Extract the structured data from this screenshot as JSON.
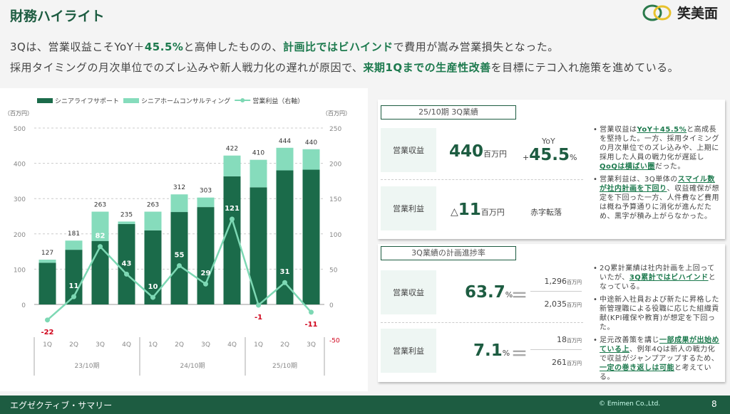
{
  "header": {
    "title": "財務ハイライト",
    "logo_text": "笑美面"
  },
  "headline": {
    "line1": [
      {
        "t": "3Qは、営業収益こそYoY＋",
        "e": false
      },
      {
        "t": "45.5%",
        "e": true
      },
      {
        "t": "と高伸したものの、",
        "e": false
      },
      {
        "t": "計画比ではビハインド",
        "e": true
      },
      {
        "t": "で費用が嵩み営業損失となった。",
        "e": false
      }
    ],
    "line2": [
      {
        "t": "採用タイミングの月次単位でのズレ込みや新人戦力化の遅れが原因で、",
        "e": false
      },
      {
        "t": "来期1Qまでの生産性改善",
        "e": true
      },
      {
        "t": "を目標にテコ入れ施策を進めている。",
        "e": false
      }
    ]
  },
  "chart_data": {
    "type": "bar",
    "legend": [
      "シニアライフサポート",
      "シニアホームコンサルティング",
      "営業利益（右軸）"
    ],
    "y_unit_left": "（百万円）",
    "y_unit_right": "（百万円）",
    "categories": [
      "1Q",
      "2Q",
      "3Q",
      "4Q",
      "1Q",
      "2Q",
      "3Q",
      "4Q",
      "1Q",
      "2Q",
      "3Q"
    ],
    "groups": [
      {
        "label": "23/10期",
        "count": 4
      },
      {
        "label": "24/10期",
        "count": 4
      },
      {
        "label": "25/10期",
        "count": 3
      }
    ],
    "series": [
      {
        "name": "シニアライフサポート",
        "values": [
          118,
          155,
          180,
          228,
          210,
          262,
          276,
          363,
          332,
          380,
          382
        ]
      },
      {
        "name": "シニアホームコンサルティング",
        "values": [
          9,
          26,
          83,
          7,
          53,
          50,
          27,
          59,
          78,
          64,
          58
        ]
      }
    ],
    "totals": [
      127,
      181,
      263,
      235,
      263,
      312,
      303,
      422,
      410,
      444,
      440
    ],
    "operating_profit": [
      -22,
      11,
      82,
      43,
      10,
      55,
      29,
      121,
      -1,
      31,
      -11
    ],
    "ylim_left": [
      0,
      500
    ],
    "yticks_left": [
      0,
      100,
      200,
      300,
      400,
      500
    ],
    "ylim_right": [
      -50,
      250
    ],
    "yticks_right": [
      -50,
      0,
      50,
      100,
      150,
      200,
      250
    ],
    "colors": {
      "dark": "#1b6b4a",
      "light": "#86dcbc",
      "line": "#7dd8b4",
      "neg": "#d0021b"
    }
  },
  "results": {
    "section_label": "25/10期 3Q業績",
    "revenue_label": "営業収益",
    "revenue_value": "440",
    "revenue_unit": "百万円",
    "yoy_label": "YoY",
    "yoy_sign": "+",
    "yoy_value": "45.5",
    "yoy_unit": "%",
    "profit_label": "営業利益",
    "profit_prefix": "△",
    "profit_value": "11",
    "profit_unit": "百万円",
    "profit_status": "赤字転落",
    "notes": [
      [
        {
          "t": "営業収益は",
          "e": false
        },
        {
          "t": "YoY＋45.5%",
          "e": true
        },
        {
          "t": "と高成長を堅持した。一方、採用タイミングの月次単位でのズレ込みや、上期に採用した人員の戦力化が遅延し",
          "e": false
        },
        {
          "t": "QoQは横ばい圏",
          "e": true
        },
        {
          "t": "だった。",
          "e": false
        }
      ],
      [
        {
          "t": "営業利益は、3Q単体の",
          "e": false
        },
        {
          "t": "スマイル数が社内計画を下回り",
          "e": true
        },
        {
          "t": "、収益確保が想定を下回った一方、人件費など費用は概ね予算通りに消化が進んだため、黒字が積み上がらなかった。",
          "e": false
        }
      ]
    ]
  },
  "progress": {
    "section_label": "3Q業績の計画進捗率",
    "revenue_label": "営業収益",
    "revenue_rate": "63.7",
    "rate_unit": "%",
    "revenue_actual": "1,296",
    "revenue_plan": "2,035",
    "profit_label": "営業利益",
    "profit_rate": "7.1",
    "profit_actual": "18",
    "profit_plan": "261",
    "unit": "百万円",
    "equals": "＝",
    "notes": [
      [
        {
          "t": "2Q累計業績は社内計画を上回っていたが、",
          "e": false
        },
        {
          "t": "3Q累計ではビハインド",
          "e": true
        },
        {
          "t": "となっている。",
          "e": false
        }
      ],
      [
        {
          "t": "中途新入社員および新たに昇格した新管理職による役職に応じた組織貢献(KPI確保や教育)が想定を下回った。",
          "e": false
        }
      ],
      [
        {
          "t": "足元改善策を講じ",
          "e": false
        },
        {
          "t": "一部成果が出始めている上",
          "e": true
        },
        {
          "t": "、例年4Qは新人の戦力化で収益がジャンプアップするため、",
          "e": false
        },
        {
          "t": "一定の巻き返しは可能",
          "e": true
        },
        {
          "t": "と考えている。",
          "e": false
        }
      ]
    ]
  },
  "footer": {
    "title": "エグゼクティブ・サマリー",
    "copyright": "© Emimen Co.,Ltd.",
    "page": "8"
  }
}
